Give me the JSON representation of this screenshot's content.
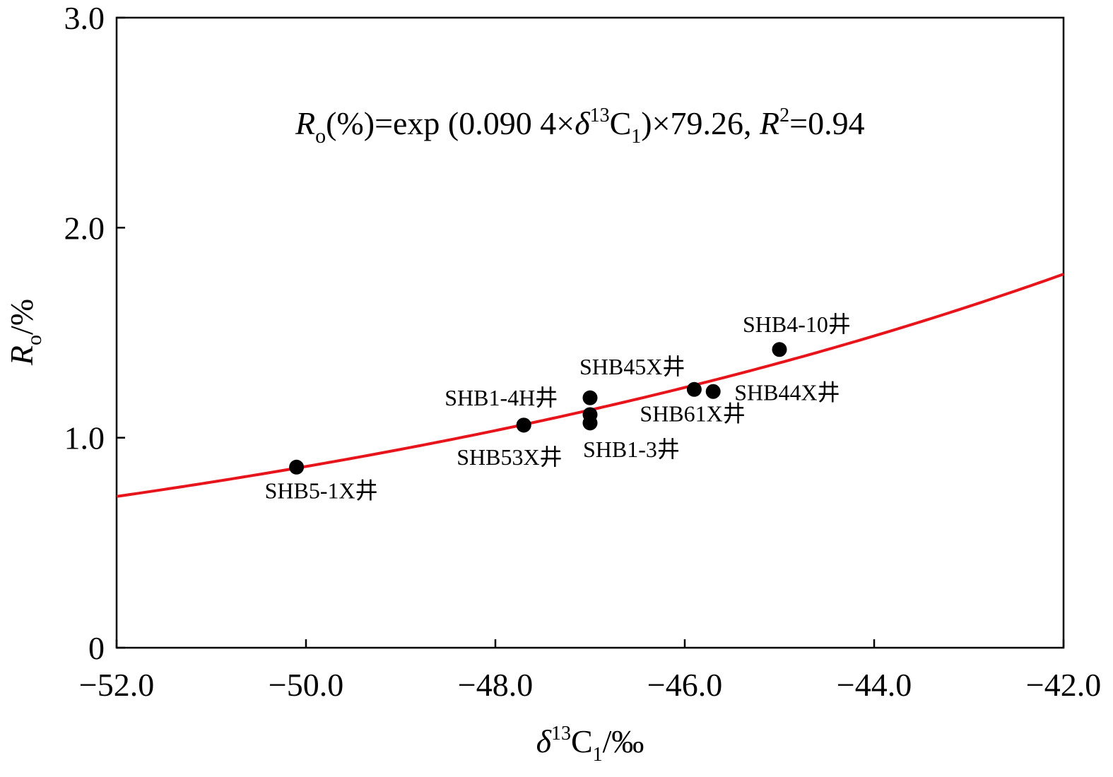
{
  "chart_data": {
    "type": "scatter",
    "x_range": [
      -52.0,
      -42.0
    ],
    "y_range": [
      0,
      3.0
    ],
    "x_ticks": [
      -52.0,
      -50.0,
      -48.0,
      -46.0,
      -44.0,
      -42.0
    ],
    "x_tick_labels": [
      "−52.0",
      "−50.0",
      "−48.0",
      "−46.0",
      "−44.0",
      "−42.0"
    ],
    "y_ticks": [
      0,
      1.0,
      2.0,
      3.0
    ],
    "y_tick_labels": [
      "0",
      "1.0",
      "2.0",
      "3.0"
    ],
    "xlabel": {
      "symbol": "δ",
      "sup": "13",
      "main": "C",
      "sub": "1",
      "unit": "/‰"
    },
    "ylabel": {
      "symbol": "R",
      "sub": "o",
      "unit": "/%"
    },
    "equation": {
      "r": "R",
      "o": "o",
      "part1": "(%)=exp (0.090 4×",
      "delta": "δ",
      "sup13": "13",
      "c": "C",
      "sub1": "1",
      "part2": ")×79.26, ",
      "r2": "R",
      "sup2": "2",
      "part3": "=0.94"
    },
    "fit": {
      "type": "exponential",
      "a": 0.0904,
      "b": 79.26,
      "r2": 0.94,
      "color": "#e8141b"
    },
    "points": [
      {
        "label": "SHB5-1X井",
        "x": -50.1,
        "y": 0.86
      },
      {
        "label": "SHB53X井",
        "x": -47.7,
        "y": 1.06
      },
      {
        "label": "SHB1-4H井",
        "x": -47.7,
        "y": 1.06
      },
      {
        "label": "SHB45X井",
        "x": -47.0,
        "y": 1.19
      },
      {
        "label": "SHB1-3井",
        "x": -47.0,
        "y": 1.07
      },
      {
        "label": "",
        "x": -47.0,
        "y": 1.11
      },
      {
        "label": "SHB61X井",
        "x": -45.9,
        "y": 1.23
      },
      {
        "label": "SHB44X井",
        "x": -45.7,
        "y": 1.22
      },
      {
        "label": "SHB4-10井",
        "x": -45.0,
        "y": 1.42
      }
    ],
    "point_color": "#000000",
    "grid": false
  }
}
